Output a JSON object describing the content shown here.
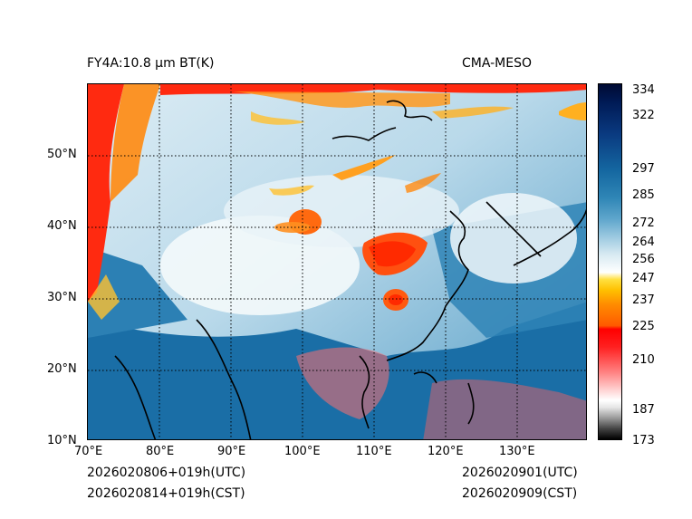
{
  "header": {
    "left_title": "FY4A:10.8 µm BT(K)",
    "right_title": "CMA-MESO"
  },
  "footer": {
    "init_utc": "2026020806+019h(UTC)",
    "init_cst": "2026020814+019h(CST)",
    "valid_utc": "2026020901(UTC)",
    "valid_cst": "2026020909(CST)"
  },
  "map": {
    "lon_labels": [
      "70°E",
      "80°E",
      "90°E",
      "100°E",
      "110°E",
      "120°E",
      "130°E"
    ],
    "lat_labels": [
      "50°N",
      "40°N",
      "30°N",
      "20°N",
      "10°N"
    ],
    "lon_range": [
      70,
      140
    ],
    "lat_range": [
      10,
      60
    ]
  },
  "colorbar": {
    "ticks": [
      "334",
      "322",
      "297",
      "285",
      "272",
      "264",
      "256",
      "247",
      "237",
      "225",
      "210",
      "187",
      "173"
    ]
  }
}
